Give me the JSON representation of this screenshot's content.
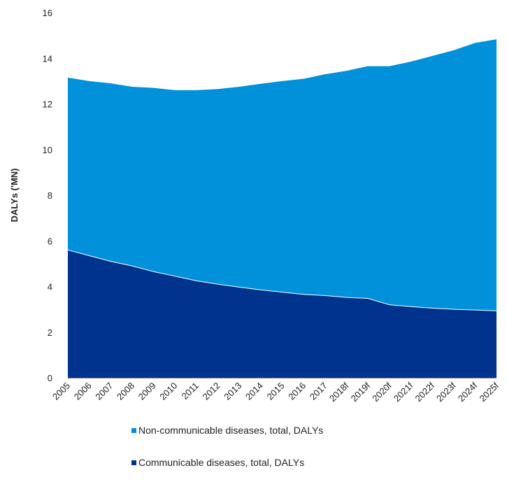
{
  "chart_data": {
    "type": "area",
    "stacked": true,
    "ylabel": "DALYs ('MN)",
    "xlabel": "",
    "ylim": [
      0,
      16
    ],
    "yticks": [
      0,
      2,
      4,
      6,
      8,
      10,
      12,
      14,
      16
    ],
    "x": [
      "2005",
      "2006",
      "2007",
      "2008",
      "2009",
      "2010",
      "2011",
      "2012",
      "2013",
      "2014",
      "2015",
      "2016",
      "2017",
      "2018f",
      "2019f",
      "2020f",
      "2021f",
      "2022f",
      "2023f",
      "2024f",
      "2025f"
    ],
    "series": [
      {
        "name": "Communicable diseases, total, DALYs",
        "color": "#00338D",
        "values": [
          5.6,
          5.35,
          5.1,
          4.9,
          4.65,
          4.45,
          4.25,
          4.1,
          3.97,
          3.85,
          3.75,
          3.65,
          3.6,
          3.52,
          3.48,
          3.2,
          3.12,
          3.05,
          3.0,
          2.97,
          2.93
        ]
      },
      {
        "name": "Non-communicable diseases, total, DALYs",
        "color": "#0091DA",
        "values": [
          7.55,
          7.65,
          7.8,
          7.85,
          8.05,
          8.15,
          8.35,
          8.55,
          8.78,
          9.03,
          9.25,
          9.45,
          9.7,
          9.93,
          10.17,
          10.45,
          10.73,
          11.05,
          11.35,
          11.7,
          11.9
        ]
      }
    ],
    "grid": false,
    "legend_position": "bottom"
  }
}
